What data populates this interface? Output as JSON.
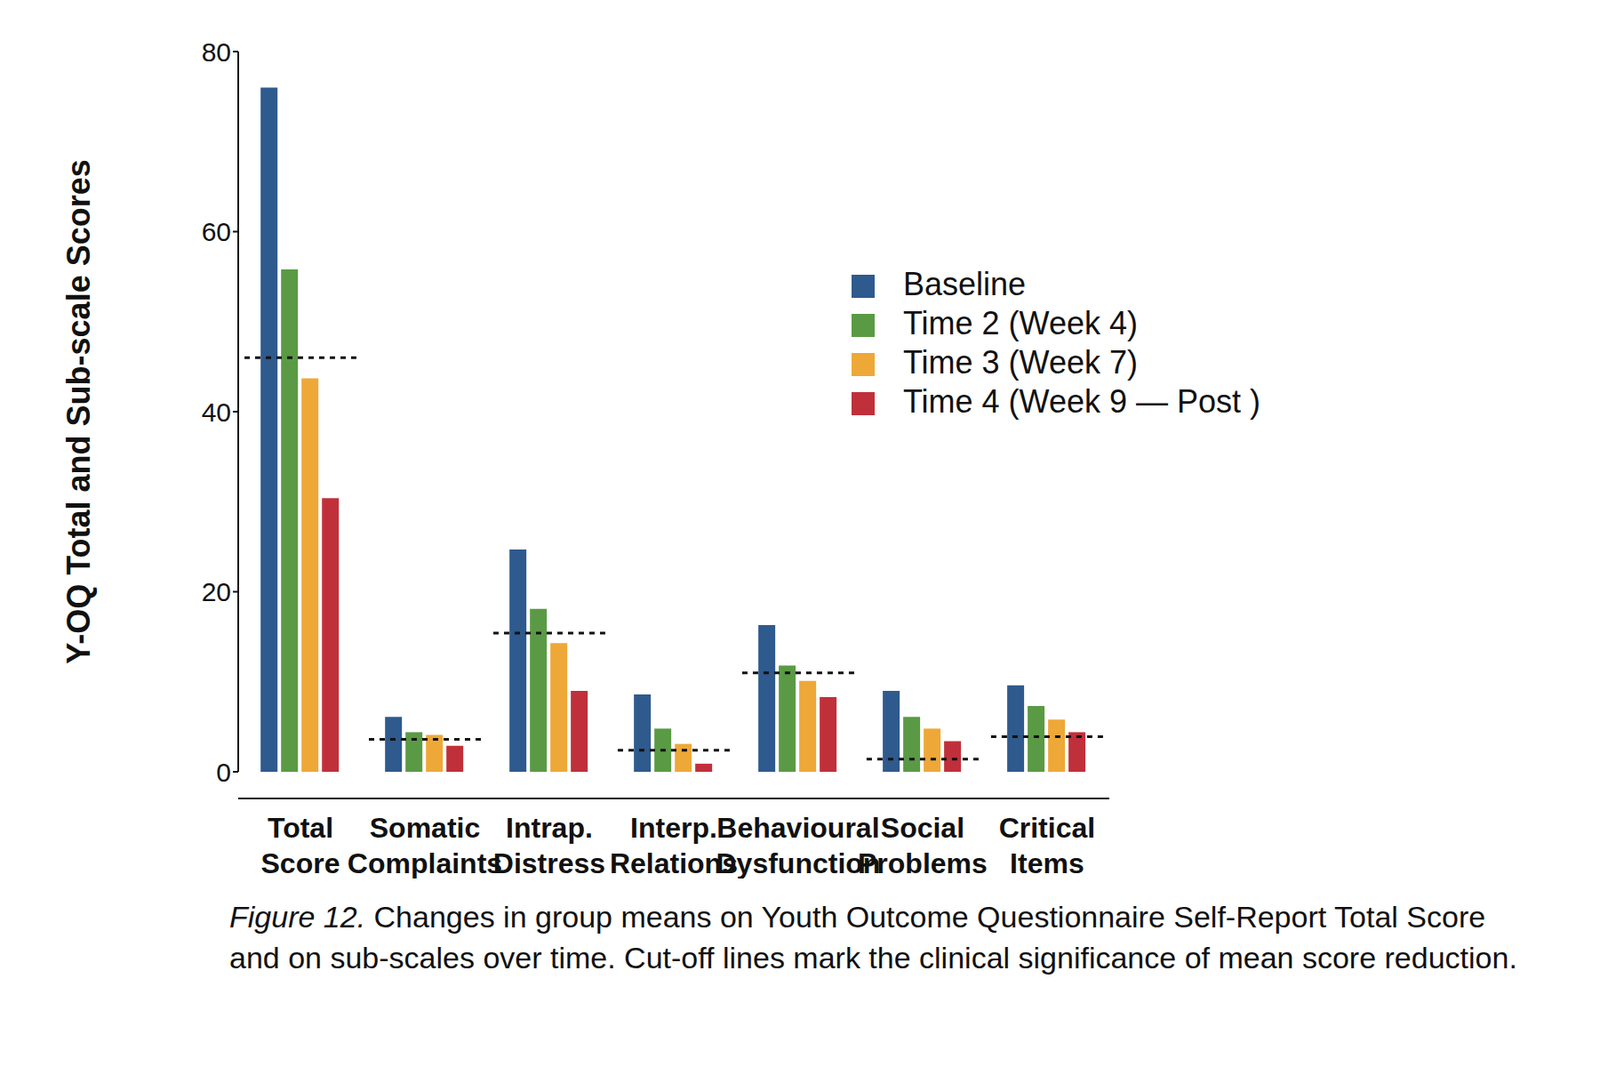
{
  "chart_data": {
    "type": "bar",
    "ylabel": "Y-OQ Total and Sub-scale Scores",
    "figure_label": "Figure 12.",
    "caption": "Changes in group means on Youth Outcome Questionnaire Self-Report Total Score and on sub-scales over time. Cut-off lines mark the clinical significance of mean score reduction.",
    "categories": [
      "Total Score",
      "Somatic Complaints",
      "Intrap. Distress",
      "Interp. Relations",
      "Behavioural Dysfunction",
      "Social Problems",
      "Critical Items"
    ],
    "series": [
      {
        "name": "Baseline",
        "color": "#2e5a8e",
        "values": [
          76.0,
          6.1,
          24.7,
          8.6,
          16.3,
          9.0,
          9.6
        ]
      },
      {
        "name": "Time 2 (Week 4)",
        "color": "#5a9a45",
        "values": [
          55.8,
          4.4,
          18.1,
          4.8,
          11.8,
          6.1,
          7.3
        ]
      },
      {
        "name": "Time 3 (Week 7)",
        "color": "#eea838",
        "values": [
          43.7,
          4.1,
          14.3,
          3.1,
          10.1,
          4.8,
          5.8
        ]
      },
      {
        "name": "Time 4 (Week 9 — Post )",
        "color": "#c0303a",
        "values": [
          30.4,
          2.9,
          9.0,
          0.9,
          8.3,
          3.4,
          4.4
        ]
      }
    ],
    "cutoffs": [
      46.0,
      3.6,
      15.4,
      2.4,
      11.0,
      1.4,
      3.9
    ],
    "ylim": [
      0,
      80
    ],
    "yticks": [
      0,
      20,
      40,
      60,
      80
    ],
    "grid": false,
    "legend": "upper right",
    "data_labels": false
  }
}
